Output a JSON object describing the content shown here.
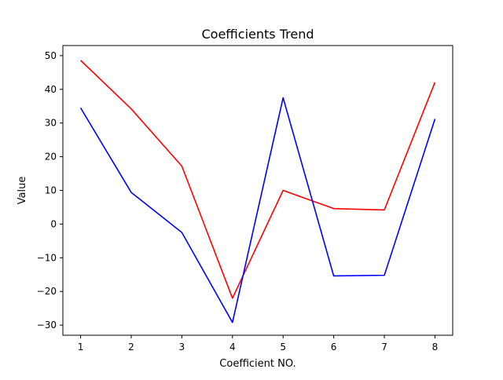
{
  "chart_data": {
    "type": "line",
    "title": "Coefficients Trend",
    "xlabel": "Coefficient NO.",
    "ylabel": "Value",
    "x": [
      1,
      2,
      3,
      4,
      5,
      6,
      7,
      8
    ],
    "xlim": [
      0.65,
      8.35
    ],
    "ylim": [
      -33,
      53
    ],
    "x_ticks": [
      1,
      2,
      3,
      4,
      5,
      6,
      7,
      8
    ],
    "y_ticks": [
      -30,
      -20,
      -10,
      0,
      10,
      20,
      30,
      40,
      50
    ],
    "grid": false,
    "legend": "none",
    "series": [
      {
        "color": "#ff0000",
        "values": [
          48.6,
          34.2,
          17.2,
          -22.0,
          10.0,
          4.6,
          4.2,
          42.1
        ]
      },
      {
        "color": "#0000ff",
        "values": [
          34.5,
          9.4,
          -2.5,
          -29.2,
          37.5,
          -15.4,
          -15.2,
          31.2
        ]
      }
    ]
  }
}
